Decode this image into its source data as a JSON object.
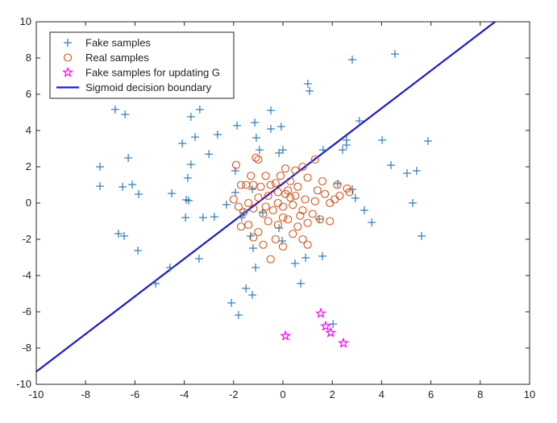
{
  "chart_data": {
    "type": "scatter",
    "title": "",
    "xlabel": "",
    "ylabel": "",
    "xlim": [
      -10,
      10
    ],
    "ylim": [
      -10,
      10
    ],
    "xticks": [
      -10,
      -8,
      -6,
      -4,
      -2,
      0,
      2,
      4,
      6,
      8,
      10
    ],
    "yticks": [
      -10,
      -8,
      -6,
      -4,
      -2,
      0,
      2,
      4,
      6,
      8,
      10
    ],
    "grid": false,
    "legend_position": "top-left",
    "series": [
      {
        "name": "Fake samples",
        "marker": "plus",
        "color": "#2b7bb9",
        "points": [
          [
            2.81,
            7.91
          ],
          [
            4.54,
            8.22
          ],
          [
            1.01,
            6.58
          ],
          [
            1.08,
            6.18
          ],
          [
            -3.37,
            5.16
          ],
          [
            -6.8,
            5.16
          ],
          [
            -6.4,
            4.89
          ],
          [
            -0.49,
            5.11
          ],
          [
            3.1,
            4.53
          ],
          [
            -3.73,
            4.76
          ],
          [
            -1.14,
            4.44
          ],
          [
            -1.86,
            4.27
          ],
          [
            -0.07,
            4.22
          ],
          [
            -2.65,
            3.78
          ],
          [
            -3.56,
            3.64
          ],
          [
            -1.08,
            3.6
          ],
          [
            -0.49,
            4.09
          ],
          [
            5.88,
            3.42
          ],
          [
            4.02,
            3.47
          ],
          [
            2.58,
            3.47
          ],
          [
            -4.08,
            3.29
          ],
          [
            -3.0,
            2.7
          ],
          [
            0.0,
            2.93
          ],
          [
            -0.16,
            2.76
          ],
          [
            -0.95,
            2.93
          ],
          [
            -6.27,
            2.49
          ],
          [
            1.63,
            2.93
          ],
          [
            2.42,
            2.93
          ],
          [
            2.58,
            3.2
          ],
          [
            4.38,
            2.09
          ],
          [
            -7.42,
            2.0
          ],
          [
            -3.73,
            2.13
          ],
          [
            -1.93,
            1.78
          ],
          [
            5.42,
            1.78
          ],
          [
            5.03,
            1.64
          ],
          [
            2.22,
            1.07
          ],
          [
            -7.42,
            0.93
          ],
          [
            -6.5,
            0.89
          ],
          [
            -6.11,
            1.02
          ],
          [
            2.81,
            0.76
          ],
          [
            -1.93,
            0.58
          ],
          [
            -1.24,
            0.76
          ],
          [
            -3.86,
            1.38
          ],
          [
            -5.85,
            0.49
          ],
          [
            -4.51,
            0.53
          ],
          [
            -3.82,
            0.13
          ],
          [
            -3.92,
            0.18
          ],
          [
            2.94,
            0.27
          ],
          [
            -2.29,
            -0.09
          ],
          [
            5.26,
            0.0
          ],
          [
            -2.78,
            -0.76
          ],
          [
            -3.24,
            -0.8
          ],
          [
            -3.95,
            -0.8
          ],
          [
            3.3,
            -0.4
          ],
          [
            3.6,
            -1.07
          ],
          [
            1.47,
            -0.89
          ],
          [
            -1.57,
            -0.53
          ],
          [
            -1.67,
            -0.8
          ],
          [
            -0.82,
            -0.53
          ],
          [
            -1.31,
            -1.82
          ],
          [
            -0.16,
            -1.38
          ],
          [
            -6.67,
            -1.69
          ],
          [
            -6.44,
            -1.82
          ],
          [
            5.62,
            -1.82
          ],
          [
            -5.88,
            -2.62
          ],
          [
            -3.4,
            -3.07
          ],
          [
            -1.21,
            -2.49
          ],
          [
            -0.03,
            -2.09
          ],
          [
            0.49,
            -3.33
          ],
          [
            0.92,
            -3.02
          ],
          [
            1.6,
            -2.93
          ],
          [
            -4.58,
            -3.56
          ],
          [
            -1.11,
            -3.56
          ],
          [
            0.72,
            -4.44
          ],
          [
            -1.5,
            -4.71
          ],
          [
            -1.24,
            -5.07
          ],
          [
            -5.16,
            -4.44
          ],
          [
            -2.09,
            -5.51
          ],
          [
            -1.8,
            -6.18
          ],
          [
            2.03,
            -6.67
          ]
        ]
      },
      {
        "name": "Real samples",
        "marker": "circle",
        "color": "#d95319",
        "points": [
          [
            -1.9,
            2.1
          ],
          [
            -1.1,
            2.5
          ],
          [
            -1.0,
            2.4
          ],
          [
            0.8,
            2.0
          ],
          [
            1.3,
            2.4
          ],
          [
            0.1,
            1.9
          ],
          [
            -0.3,
            1.1
          ],
          [
            -0.7,
            1.5
          ],
          [
            -1.2,
            1.0
          ],
          [
            -1.7,
            1.0
          ],
          [
            -1.5,
            1.0
          ],
          [
            0.5,
            1.8
          ],
          [
            -0.1,
            1.5
          ],
          [
            0.3,
            1.2
          ],
          [
            1.0,
            1.4
          ],
          [
            1.6,
            1.2
          ],
          [
            2.2,
            1.0
          ],
          [
            2.6,
            0.8
          ],
          [
            2.7,
            0.6
          ],
          [
            -2.0,
            0.2
          ],
          [
            -1.8,
            -0.2
          ],
          [
            -1.4,
            0.0
          ],
          [
            -1.0,
            0.3
          ],
          [
            -0.6,
            0.4
          ],
          [
            -0.2,
            0.6
          ],
          [
            0.2,
            0.7
          ],
          [
            0.5,
            0.4
          ],
          [
            0.9,
            0.2
          ],
          [
            1.3,
            0.1
          ],
          [
            1.7,
            0.5
          ],
          [
            2.1,
            0.2
          ],
          [
            -1.6,
            -0.5
          ],
          [
            -1.2,
            -0.3
          ],
          [
            -0.8,
            -0.6
          ],
          [
            -0.4,
            -0.4
          ],
          [
            0.0,
            -0.2
          ],
          [
            0.4,
            -0.1
          ],
          [
            0.8,
            -0.4
          ],
          [
            1.2,
            -0.6
          ],
          [
            1.5,
            -0.9
          ],
          [
            1.9,
            -1.0
          ],
          [
            -1.4,
            -1.2
          ],
          [
            -1.0,
            -1.6
          ],
          [
            -0.6,
            -1.0
          ],
          [
            -0.2,
            -1.2
          ],
          [
            0.2,
            -0.9
          ],
          [
            0.6,
            -1.3
          ],
          [
            1.0,
            -1.1
          ],
          [
            -1.7,
            -1.3
          ],
          [
            -1.2,
            -1.9
          ],
          [
            -0.8,
            -2.3
          ],
          [
            -0.3,
            -2.0
          ],
          [
            0.0,
            -2.4
          ],
          [
            0.4,
            -1.7
          ],
          [
            0.8,
            -2.0
          ],
          [
            1.0,
            -2.3
          ],
          [
            -0.5,
            -3.1
          ],
          [
            0.0,
            -0.8
          ],
          [
            -0.9,
            0.9
          ],
          [
            -0.5,
            1.0
          ],
          [
            0.3,
            0.3
          ],
          [
            0.6,
            0.9
          ],
          [
            1.9,
            0.0
          ],
          [
            2.3,
            0.4
          ],
          [
            -0.2,
            0.0
          ],
          [
            0.1,
            0.5
          ],
          [
            -0.7,
            -0.2
          ],
          [
            1.4,
            0.7
          ],
          [
            -1.3,
            1.5
          ],
          [
            0.7,
            -0.7
          ]
        ]
      },
      {
        "name": "Fake samples for updating G",
        "marker": "star",
        "color": "#ff00ff",
        "points": [
          [
            0.1,
            -7.33
          ],
          [
            1.53,
            -6.09
          ],
          [
            1.73,
            -6.8
          ],
          [
            1.93,
            -7.16
          ],
          [
            2.45,
            -7.73
          ]
        ]
      },
      {
        "name": "Sigmoid decision boundary",
        "marker": "line",
        "color": "#1a1ad6",
        "points": [
          [
            -10,
            -9.3
          ],
          [
            8.6,
            10
          ]
        ]
      }
    ]
  }
}
